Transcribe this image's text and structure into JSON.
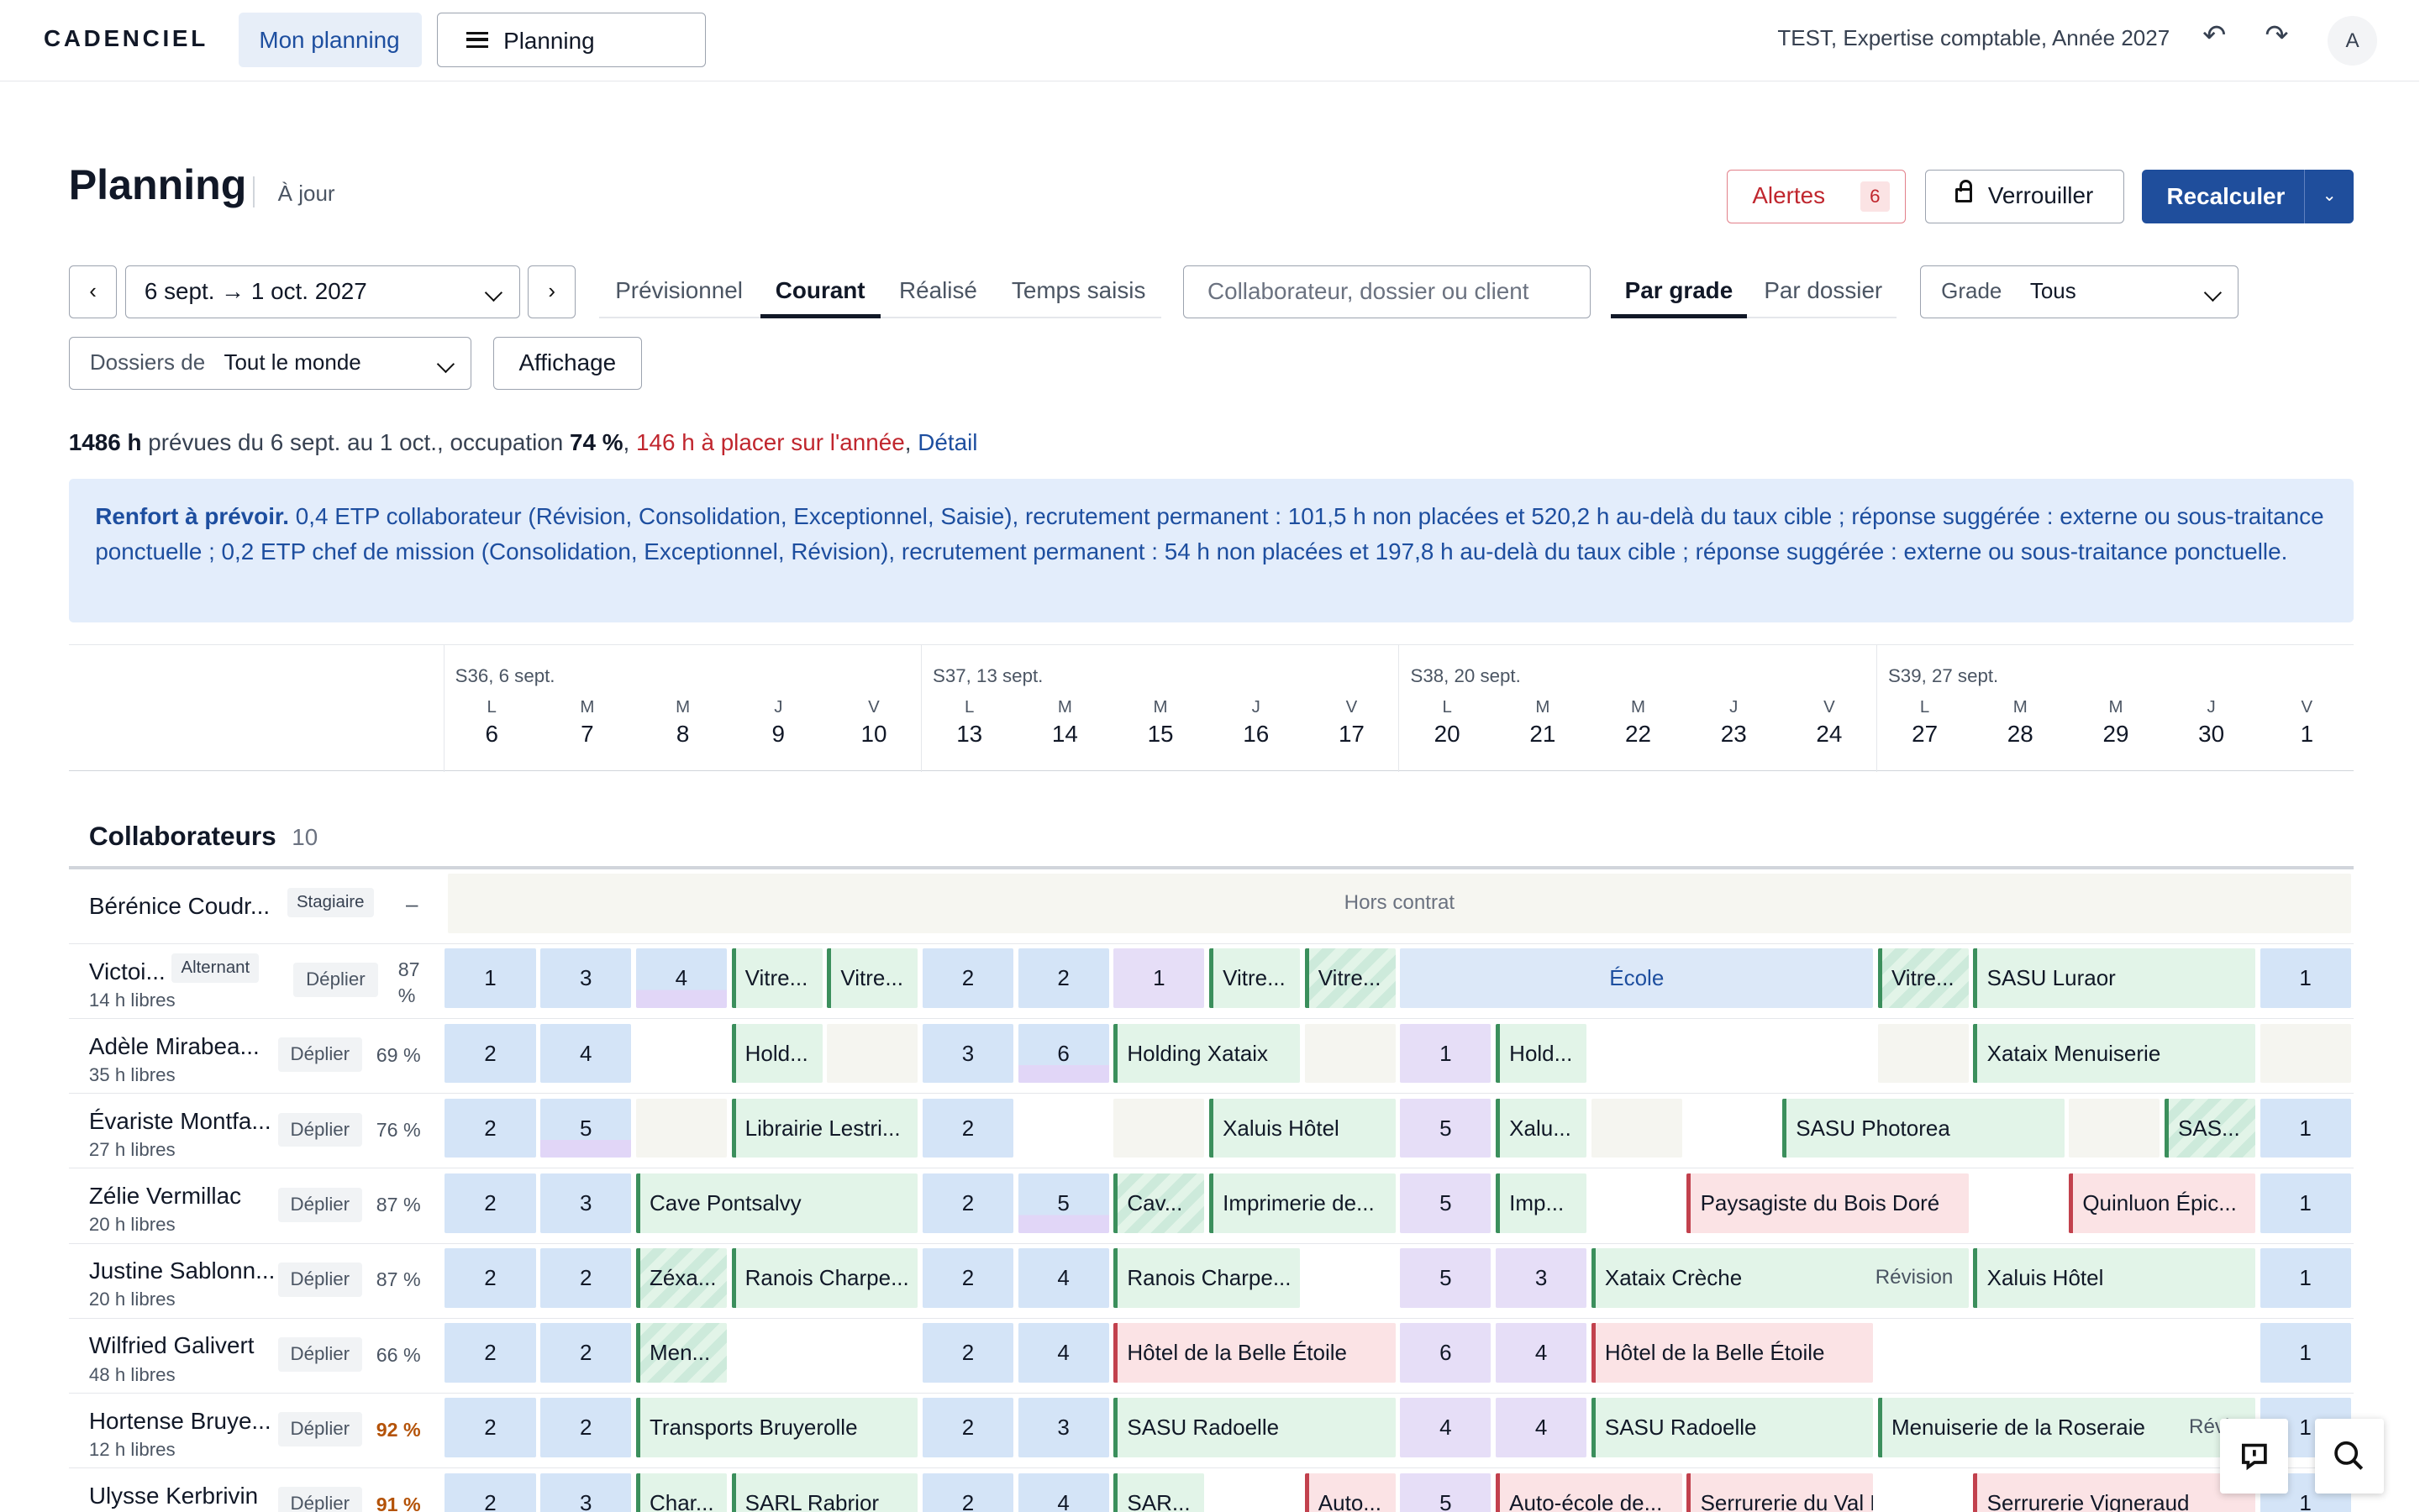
{
  "brand": "CADENCIEL",
  "nav": {
    "mon_planning": "Mon planning",
    "planning": "Planning"
  },
  "context": "TEST, Expertise comptable, Année 2027",
  "avatar": "A",
  "header": {
    "title": "Planning",
    "status": "À jour",
    "alerts_label": "Alertes",
    "alerts_count": "6",
    "lock": "Verrouiller",
    "recalc": "Recalculer"
  },
  "filters": {
    "date_range": "6 sept. → 1 oct. 2027",
    "modes": [
      "Prévisionnel",
      "Courant",
      "Réalisé",
      "Temps saisis"
    ],
    "active_mode": "Courant",
    "search_placeholder": "Collaborateur, dossier ou client",
    "group_modes": [
      "Par grade",
      "Par dossier"
    ],
    "active_group": "Par grade",
    "grade_label": "Grade",
    "grade_value": "Tous",
    "dossiers_label": "Dossiers de",
    "dossiers_value": "Tout le monde",
    "display": "Affichage"
  },
  "summary": {
    "hours": "1486 h",
    "mid": " prévues du 6 sept. au 1 oct., occupation ",
    "occ": "74 %",
    "sep": ", ",
    "to_place": "146 h à placer sur l'année",
    "sep2": ", ",
    "detail": "Détail"
  },
  "notice": {
    "title": "Renfort à prévoir.",
    "text": " 0,4 ETP collaborateur (Révision, Consolidation, Exceptionnel, Saisie), recrutement permanent : 101,5 h non placées et 520,2 h au-delà du taux cible ; réponse suggérée : externe ou sous-traitance ponctuelle ; 0,2 ETP chef de mission (Consolidation, Exceptionnel, Révision), recrutement permanent : 54 h non placées et 197,8 h au-delà du taux cible ; réponse suggérée : externe ou sous-traitance ponctuelle."
  },
  "weeks": [
    {
      "label": "S36, 6 sept.",
      "days": [
        {
          "l": "L",
          "n": "6"
        },
        {
          "l": "M",
          "n": "7"
        },
        {
          "l": "M",
          "n": "8"
        },
        {
          "l": "J",
          "n": "9"
        },
        {
          "l": "V",
          "n": "10"
        }
      ]
    },
    {
      "label": "S37, 13 sept.",
      "days": [
        {
          "l": "L",
          "n": "13"
        },
        {
          "l": "M",
          "n": "14"
        },
        {
          "l": "M",
          "n": "15"
        },
        {
          "l": "J",
          "n": "16"
        },
        {
          "l": "V",
          "n": "17"
        }
      ]
    },
    {
      "label": "S38, 20 sept.",
      "days": [
        {
          "l": "L",
          "n": "20"
        },
        {
          "l": "M",
          "n": "21"
        },
        {
          "l": "M",
          "n": "22"
        },
        {
          "l": "J",
          "n": "23"
        },
        {
          "l": "V",
          "n": "24"
        }
      ]
    },
    {
      "label": "S39, 27 sept.",
      "days": [
        {
          "l": "L",
          "n": "27"
        },
        {
          "l": "M",
          "n": "28"
        },
        {
          "l": "M",
          "n": "29"
        },
        {
          "l": "J",
          "n": "30"
        },
        {
          "l": "V",
          "n": "1"
        }
      ]
    }
  ],
  "collaborateurs": {
    "title": "Collaborateurs",
    "count": "10"
  },
  "stagiaire": {
    "name": "Bérénice Coudr...",
    "badge": "Stagiaire",
    "collapse": "–",
    "hors_contrat": "Hors contrat"
  },
  "deplier_label": "Déplier",
  "rows": [
    {
      "name": "Victoi...",
      "badge": "Alternant",
      "free": "14 h libres",
      "pct": "87 %",
      "warn": false,
      "cells": [
        {
          "s": 0,
          "w": 1,
          "k": "n",
          "t": "1"
        },
        {
          "s": 1,
          "w": 1,
          "k": "n",
          "t": "3"
        },
        {
          "s": 2,
          "w": 1,
          "k": "n v",
          "t": "4"
        },
        {
          "s": 3,
          "w": 1,
          "k": "t",
          "t": "Vitre..."
        },
        {
          "s": 4,
          "w": 1,
          "k": "t",
          "t": "Vitre..."
        },
        {
          "s": 5,
          "w": 1,
          "k": "n",
          "t": "2"
        },
        {
          "s": 6,
          "w": 1,
          "k": "n",
          "t": "2"
        },
        {
          "s": 7,
          "w": 1,
          "k": "n p",
          "t": "1"
        },
        {
          "s": 8,
          "w": 1,
          "k": "t",
          "t": "Vitre..."
        },
        {
          "s": 9,
          "w": 1,
          "k": "t s",
          "t": "Vitre..."
        },
        {
          "s": 10,
          "w": 5,
          "k": "ecole",
          "t": "École"
        },
        {
          "s": 15,
          "w": 1,
          "k": "t s",
          "t": "Vitre..."
        },
        {
          "s": 16,
          "w": 3,
          "k": "t",
          "t": "SASU Luraor"
        },
        {
          "s": 19,
          "w": 1,
          "k": "n",
          "t": "1"
        }
      ]
    },
    {
      "name": "Adèle Mirabea...",
      "badge": "",
      "free": "35 h libres",
      "pct": "69 %",
      "warn": false,
      "cells": [
        {
          "s": 0,
          "w": 1,
          "k": "n",
          "t": "2"
        },
        {
          "s": 1,
          "w": 1,
          "k": "n",
          "t": "4"
        },
        {
          "s": 3,
          "w": 1,
          "k": "t",
          "t": "Hold..."
        },
        {
          "s": 4,
          "w": 1,
          "k": "g",
          "t": ""
        },
        {
          "s": 5,
          "w": 1,
          "k": "n",
          "t": "3"
        },
        {
          "s": 6,
          "w": 1,
          "k": "n v",
          "t": "6"
        },
        {
          "s": 7,
          "w": 2,
          "k": "t",
          "t": "Holding Xataix"
        },
        {
          "s": 9,
          "w": 1,
          "k": "g",
          "t": ""
        },
        {
          "s": 10,
          "w": 1,
          "k": "n p",
          "t": "1"
        },
        {
          "s": 11,
          "w": 1,
          "k": "t",
          "t": "Hold..."
        },
        {
          "s": 15,
          "w": 1,
          "k": "g",
          "t": ""
        },
        {
          "s": 16,
          "w": 3,
          "k": "t",
          "t": "Xataix Menuiserie"
        },
        {
          "s": 19,
          "w": 1,
          "k": "g",
          "t": ""
        }
      ]
    },
    {
      "name": "Évariste Montfa...",
      "badge": "",
      "free": "27 h libres",
      "pct": "76 %",
      "warn": false,
      "cells": [
        {
          "s": 0,
          "w": 1,
          "k": "n",
          "t": "2"
        },
        {
          "s": 1,
          "w": 1,
          "k": "n v",
          "t": "5"
        },
        {
          "s": 2,
          "w": 1,
          "k": "g",
          "t": ""
        },
        {
          "s": 3,
          "w": 2,
          "k": "t",
          "t": "Librairie Lestri..."
        },
        {
          "s": 5,
          "w": 1,
          "k": "n",
          "t": "2"
        },
        {
          "s": 7,
          "w": 1,
          "k": "g",
          "t": ""
        },
        {
          "s": 8,
          "w": 2,
          "k": "t",
          "t": "Xaluis Hôtel"
        },
        {
          "s": 10,
          "w": 1,
          "k": "n p",
          "t": "5"
        },
        {
          "s": 11,
          "w": 1,
          "k": "t",
          "t": "Xalu..."
        },
        {
          "s": 12,
          "w": 1,
          "k": "g",
          "t": ""
        },
        {
          "s": 14,
          "w": 3,
          "k": "t",
          "t": "SASU Photorea"
        },
        {
          "s": 17,
          "w": 1,
          "k": "g",
          "t": ""
        },
        {
          "s": 18,
          "w": 1,
          "k": "t s",
          "t": "SAS..."
        },
        {
          "s": 19,
          "w": 1,
          "k": "n",
          "t": "1"
        }
      ]
    },
    {
      "name": "Zélie Vermillac",
      "badge": "",
      "free": "20 h libres",
      "pct": "87 %",
      "warn": false,
      "cells": [
        {
          "s": 0,
          "w": 1,
          "k": "n",
          "t": "2"
        },
        {
          "s": 1,
          "w": 1,
          "k": "n",
          "t": "3"
        },
        {
          "s": 2,
          "w": 3,
          "k": "t",
          "t": "Cave Pontsalvy"
        },
        {
          "s": 5,
          "w": 1,
          "k": "n",
          "t": "2"
        },
        {
          "s": 6,
          "w": 1,
          "k": "n v",
          "t": "5"
        },
        {
          "s": 7,
          "w": 1,
          "k": "t s",
          "t": "Cav..."
        },
        {
          "s": 8,
          "w": 2,
          "k": "t",
          "t": "Imprimerie de..."
        },
        {
          "s": 10,
          "w": 1,
          "k": "n p",
          "t": "5"
        },
        {
          "s": 11,
          "w": 1,
          "k": "t",
          "t": "Imp..."
        },
        {
          "s": 13,
          "w": 3,
          "k": "r",
          "t": "Paysagiste du Bois Doré"
        },
        {
          "s": 17,
          "w": 2,
          "k": "r",
          "t": "Quinluon Épic..."
        },
        {
          "s": 19,
          "w": 1,
          "k": "n",
          "t": "1"
        }
      ]
    },
    {
      "name": "Justine Sablonn...",
      "badge": "",
      "free": "20 h libres",
      "pct": "87 %",
      "warn": false,
      "cells": [
        {
          "s": 0,
          "w": 1,
          "k": "n",
          "t": "2"
        },
        {
          "s": 1,
          "w": 1,
          "k": "n",
          "t": "2"
        },
        {
          "s": 2,
          "w": 1,
          "k": "t s",
          "t": "Zéxa..."
        },
        {
          "s": 3,
          "w": 2,
          "k": "t",
          "t": "Ranois Charpe..."
        },
        {
          "s": 5,
          "w": 1,
          "k": "n",
          "t": "2"
        },
        {
          "s": 6,
          "w": 1,
          "k": "n",
          "t": "4"
        },
        {
          "s": 7,
          "w": 2,
          "k": "t",
          "t": "Ranois Charpe..."
        },
        {
          "s": 10,
          "w": 1,
          "k": "n p",
          "t": "5"
        },
        {
          "s": 11,
          "w": 1,
          "k": "n p",
          "t": "3"
        },
        {
          "s": 12,
          "w": 4,
          "k": "t",
          "t": "Xataix Crèche",
          "tag": "Révision"
        },
        {
          "s": 16,
          "w": 3,
          "k": "t",
          "t": "Xaluis Hôtel"
        },
        {
          "s": 19,
          "w": 1,
          "k": "n",
          "t": "1"
        }
      ]
    },
    {
      "name": "Wilfried Galivert",
      "badge": "",
      "free": "48 h libres",
      "pct": "66 %",
      "warn": false,
      "cells": [
        {
          "s": 0,
          "w": 1,
          "k": "n",
          "t": "2"
        },
        {
          "s": 1,
          "w": 1,
          "k": "n",
          "t": "2"
        },
        {
          "s": 2,
          "w": 1,
          "k": "t s",
          "t": "Men..."
        },
        {
          "s": 5,
          "w": 1,
          "k": "n",
          "t": "2"
        },
        {
          "s": 6,
          "w": 1,
          "k": "n",
          "t": "4"
        },
        {
          "s": 7,
          "w": 3,
          "k": "r",
          "t": "Hôtel de la Belle Étoile"
        },
        {
          "s": 10,
          "w": 1,
          "k": "n p",
          "t": "6"
        },
        {
          "s": 11,
          "w": 1,
          "k": "n p",
          "t": "4"
        },
        {
          "s": 12,
          "w": 3,
          "k": "r",
          "t": "Hôtel de la Belle Étoile"
        },
        {
          "s": 19,
          "w": 1,
          "k": "n",
          "t": "1"
        }
      ]
    },
    {
      "name": "Hortense Bruye...",
      "badge": "",
      "free": "12 h libres",
      "pct": "92 %",
      "warn": true,
      "cells": [
        {
          "s": 0,
          "w": 1,
          "k": "n",
          "t": "2"
        },
        {
          "s": 1,
          "w": 1,
          "k": "n",
          "t": "2"
        },
        {
          "s": 2,
          "w": 3,
          "k": "t",
          "t": "Transports Bruyerolle"
        },
        {
          "s": 5,
          "w": 1,
          "k": "n",
          "t": "2"
        },
        {
          "s": 6,
          "w": 1,
          "k": "n",
          "t": "3"
        },
        {
          "s": 7,
          "w": 3,
          "k": "t",
          "t": "SASU Radoelle"
        },
        {
          "s": 10,
          "w": 1,
          "k": "n p",
          "t": "4"
        },
        {
          "s": 11,
          "w": 1,
          "k": "n p",
          "t": "4"
        },
        {
          "s": 12,
          "w": 3,
          "k": "t",
          "t": "SASU Radoelle"
        },
        {
          "s": 15,
          "w": 4,
          "k": "t",
          "t": "Menuiserie de la Roseraie",
          "tag": "Révis"
        },
        {
          "s": 19,
          "w": 1,
          "k": "n",
          "t": "1"
        }
      ]
    },
    {
      "name": "Ulysse Kerbrivin",
      "badge": "",
      "free": "14 h libres",
      "pct": "91 %",
      "warn": true,
      "cells": [
        {
          "s": 0,
          "w": 1,
          "k": "n",
          "t": "2"
        },
        {
          "s": 1,
          "w": 1,
          "k": "n",
          "t": "3"
        },
        {
          "s": 2,
          "w": 1,
          "k": "t",
          "t": "Char..."
        },
        {
          "s": 3,
          "w": 2,
          "k": "t",
          "t": "SARL Rabrior"
        },
        {
          "s": 5,
          "w": 1,
          "k": "n",
          "t": "2"
        },
        {
          "s": 6,
          "w": 1,
          "k": "n v",
          "t": "4"
        },
        {
          "s": 7,
          "w": 1,
          "k": "t",
          "t": "SAR..."
        },
        {
          "s": 9,
          "w": 1,
          "k": "r",
          "t": "Auto..."
        },
        {
          "s": 10,
          "w": 1,
          "k": "n p",
          "t": "5"
        },
        {
          "s": 11,
          "w": 2,
          "k": "r",
          "t": "Auto-école de..."
        },
        {
          "s": 13,
          "w": 2,
          "k": "r",
          "t": "Serrurerie du Val Fleuri"
        },
        {
          "s": 16,
          "w": 3,
          "k": "r",
          "t": "Serrurerie Vigneraud"
        },
        {
          "s": 19,
          "w": 1,
          "k": "n",
          "t": "1"
        }
      ]
    }
  ]
}
